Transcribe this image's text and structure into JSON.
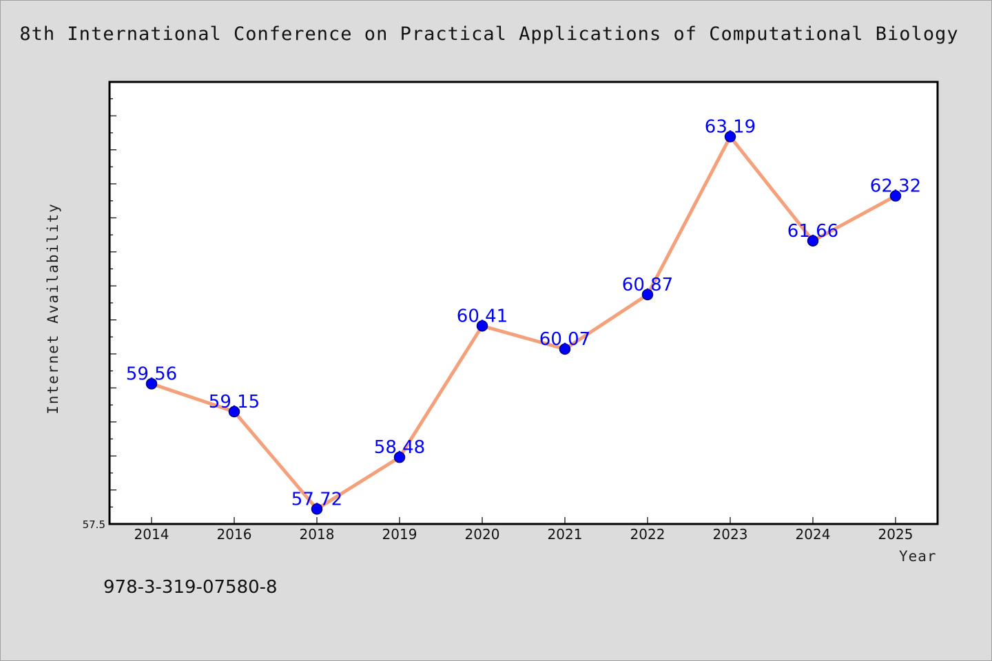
{
  "page": {
    "title": "8th International Conference on Practical Applications of Computational Biology",
    "footnote": "978-3-319-07580-8"
  },
  "chart_data": {
    "type": "line",
    "title": "8th International Conference on Practical Applications of Computational Biology",
    "xlabel": "Year",
    "ylabel": "Internet Availability",
    "categories": [
      "2014",
      "2016",
      "2018",
      "2019",
      "2020",
      "2021",
      "2022",
      "2023",
      "2024",
      "2025"
    ],
    "series": [
      {
        "values": [
          59.56,
          59.15,
          57.72,
          58.48,
          60.41,
          60.07,
          60.87,
          63.19,
          61.66,
          62.32
        ],
        "labels": [
          "59.56",
          "59.15",
          "57.72",
          "58.48",
          "60.41",
          "60.07",
          "60.87",
          "63.19",
          "61.66",
          "62.32"
        ]
      }
    ],
    "ylim": [
      57.5,
      64.0
    ],
    "ytick_labels": [
      "57.5"
    ],
    "colors": {
      "line": "#f4a07a",
      "marker": "#0000ff",
      "marker_edge": "#000080",
      "data_label": "#0000ff",
      "plot_background": "#ffffff",
      "page_background": "#dcdcdc"
    },
    "grid": false,
    "legend": "none"
  }
}
